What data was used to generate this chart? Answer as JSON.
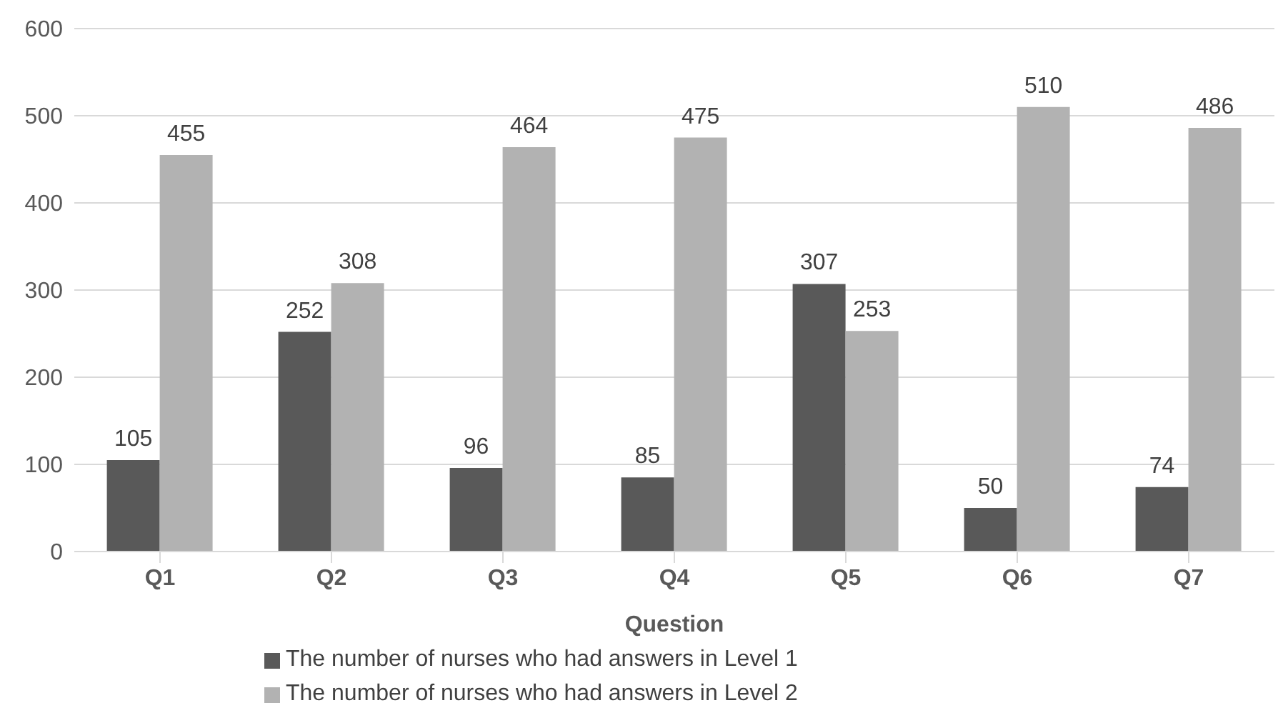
{
  "chart_data": {
    "type": "bar",
    "xlabel": "Question",
    "categories": [
      "Q1",
      "Q2",
      "Q3",
      "Q4",
      "Q5",
      "Q6",
      "Q7"
    ],
    "series": [
      {
        "name": "The number of nurses who had answers in Level 1",
        "color": "#595959",
        "values": [
          105,
          252,
          96,
          85,
          307,
          50,
          74
        ]
      },
      {
        "name": "The number of nurses who had answers in Level 2",
        "color": "#b2b2b2",
        "values": [
          455,
          308,
          464,
          475,
          253,
          510,
          486
        ]
      }
    ],
    "ylim": [
      0,
      600
    ],
    "yticks": [
      0,
      100,
      200,
      300,
      400,
      500,
      600
    ],
    "grid": "y",
    "legend": "bottom",
    "data_labels": true
  }
}
